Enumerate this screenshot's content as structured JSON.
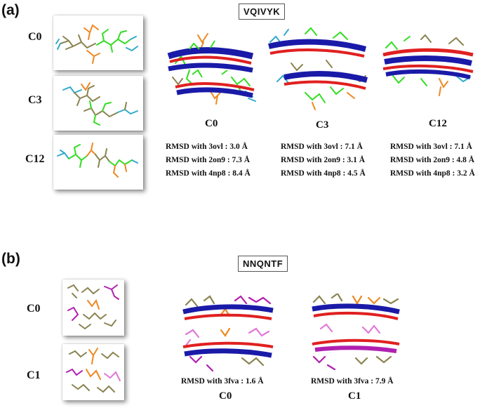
{
  "panel_a": {
    "letter": "(a)",
    "sequence": "VQIVYK",
    "thumb_labels": [
      "C0",
      "C3",
      "C12"
    ],
    "structures": [
      {
        "label": "C0",
        "rmsd": [
          "RMSD with 3ovl  : 3.0 Å",
          "RMSD with 2on9 : 7.3 Å",
          "RMSD with 4np8 : 8.4 Å"
        ]
      },
      {
        "label": "C3",
        "rmsd": [
          "RMSD with 3ovl  : 7.1 Å",
          "RMSD with 2on9 : 3.1 Å",
          "RMSD with 4np8 : 4.5 Å"
        ]
      },
      {
        "label": "C12",
        "rmsd": [
          "RMSD with 3ovl  : 7.1 Å",
          "RMSD with 2on9 : 4.8 Å",
          "RMSD with 4np8 : 3.2 Å"
        ]
      }
    ]
  },
  "panel_b": {
    "letter": "(b)",
    "sequence": "NNQNTF",
    "thumb_labels": [
      "C0",
      "C1"
    ],
    "structures": [
      {
        "label": "C0",
        "rmsd": "RMSD with 3fva : 1.6 Å"
      },
      {
        "label": "C1",
        "rmsd": "RMSD with 3fva : 7.9 Å"
      }
    ]
  },
  "colors": {
    "ribbon_red": "#e02020",
    "ribbon_blue": "#1a1aa8",
    "green": "#33dd22",
    "orange": "#ee8822",
    "olive": "#8a8350",
    "cyan": "#33aacc",
    "magenta": "#b020b0",
    "pink": "#e078d8"
  }
}
